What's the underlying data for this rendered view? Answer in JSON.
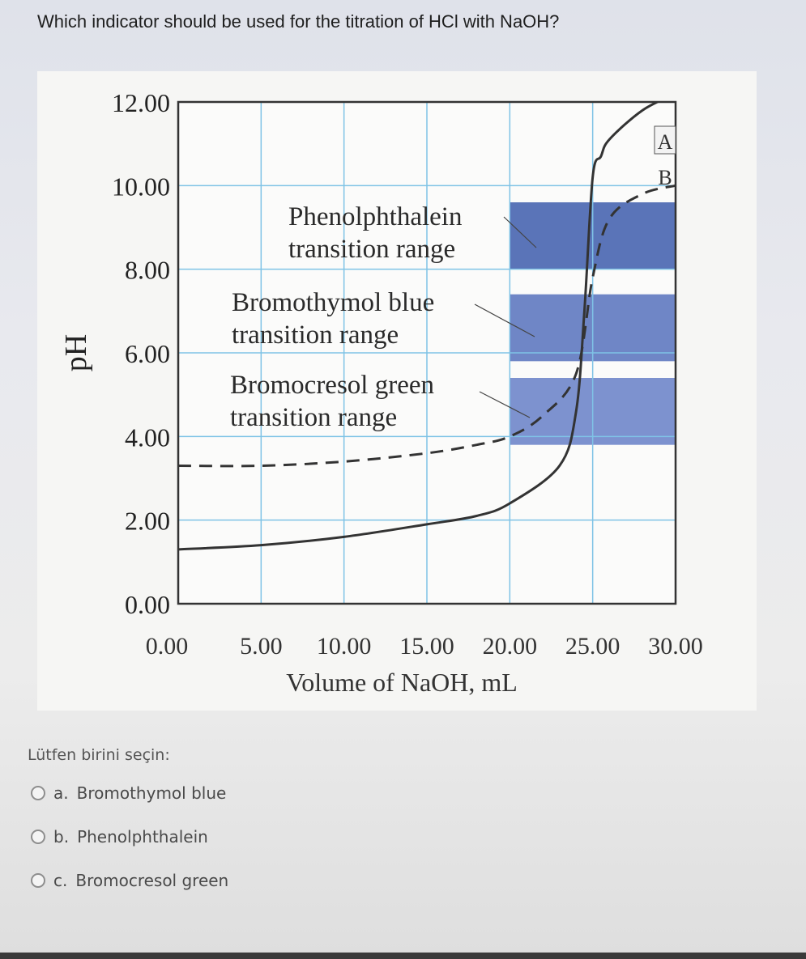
{
  "question": "Which indicator should be used for the titration of HCl with NaOH?",
  "prompt": "Lütfen birini seçin:",
  "options": [
    {
      "letter": "a.",
      "label": "Bromothymol blue"
    },
    {
      "letter": "b.",
      "label": "Phenolphthalein"
    },
    {
      "letter": "c.",
      "label": "Bromocresol green"
    }
  ],
  "chart_data": {
    "type": "line",
    "title": "",
    "xlabel": "Volume of NaOH, mL",
    "ylabel": "pH",
    "xlim": [
      0,
      30
    ],
    "ylim": [
      0,
      12
    ],
    "x_ticks": [
      "0.00",
      "5.00",
      "10.00",
      "15.00",
      "20.00",
      "25.00",
      "30.00"
    ],
    "y_ticks": [
      "0.00",
      "2.00",
      "4.00",
      "6.00",
      "8.00",
      "10.00",
      "12.00"
    ],
    "grid": true,
    "series": [
      {
        "name": "A",
        "style": "solid",
        "x": [
          0,
          5,
          10,
          15,
          18,
          20,
          23,
          24,
          24.5,
          25,
          25.5,
          26,
          28,
          30
        ],
        "y": [
          1.3,
          1.4,
          1.6,
          1.9,
          2.1,
          2.4,
          3.3,
          4.6,
          7.0,
          10.2,
          10.7,
          11.1,
          11.8,
          12.2
        ]
      },
      {
        "name": "B",
        "style": "dashed",
        "x": [
          0,
          5,
          10,
          15,
          18,
          20,
          22,
          24,
          25,
          26,
          28,
          30
        ],
        "y": [
          3.3,
          3.3,
          3.4,
          3.6,
          3.8,
          4.0,
          4.5,
          5.5,
          7.8,
          9.2,
          9.8,
          10.0
        ]
      }
    ],
    "bands": [
      {
        "label": "Phenolphthalein transition range",
        "from": 8.0,
        "to": 9.6,
        "color": "#5a74b8"
      },
      {
        "label": "Bromothymol blue transition range",
        "from": 5.8,
        "to": 7.4,
        "color": "#6f86c6"
      },
      {
        "label": "Bromocresol green transition range",
        "from": 3.8,
        "to": 5.4,
        "color": "#7d92cf"
      }
    ],
    "band_x_start": 20
  }
}
